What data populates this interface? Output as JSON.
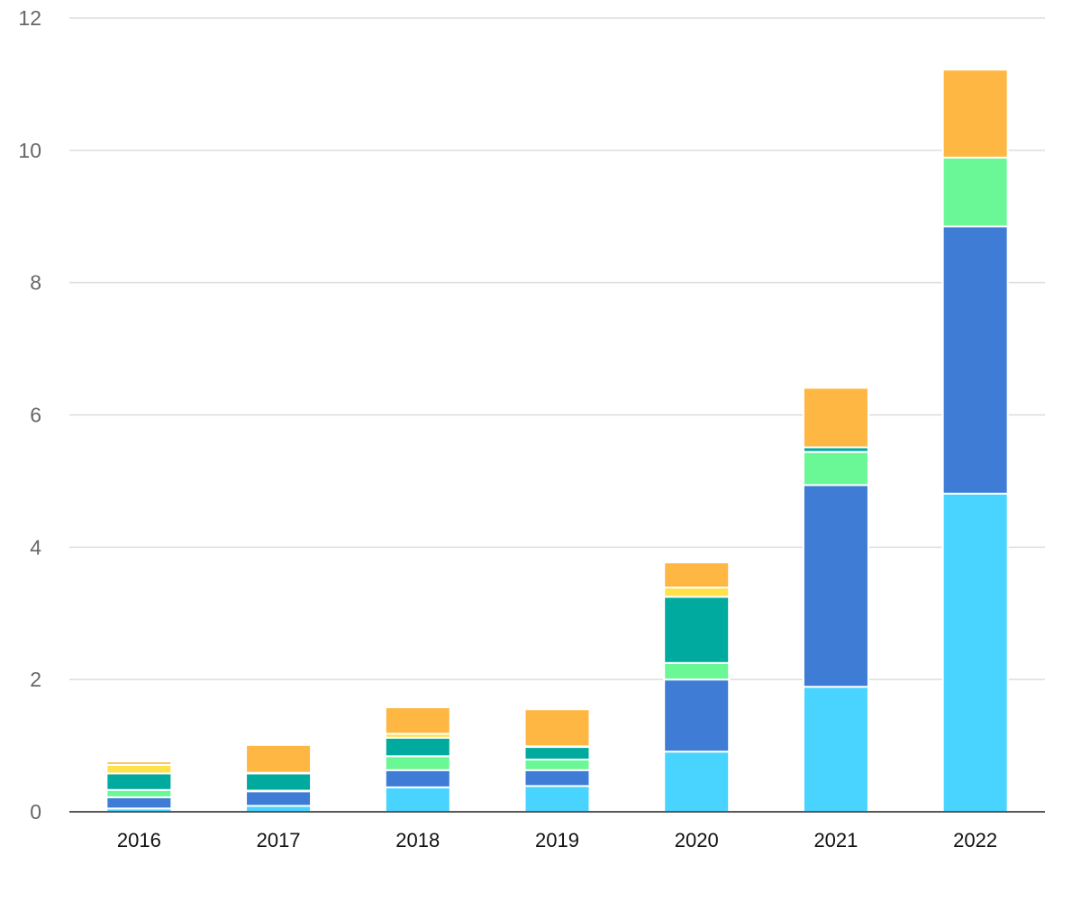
{
  "chart_data": {
    "type": "bar",
    "stacked": true,
    "categories": [
      "2016",
      "2017",
      "2018",
      "2019",
      "2020",
      "2021",
      "2022"
    ],
    "ylim": [
      0,
      12
    ],
    "yticks": [
      0,
      2,
      4,
      6,
      8,
      10,
      12
    ],
    "grid": true,
    "legend": "none",
    "colors": [
      "#48D4FF",
      "#3F7CD6",
      "#6AF897",
      "#00AA9E",
      "#FFE14A",
      "#FFB744"
    ],
    "series": [
      {
        "values": [
          0.05,
          0.09,
          0.37,
          0.39,
          0.91,
          1.89,
          4.81
        ]
      },
      {
        "values": [
          0.17,
          0.22,
          0.26,
          0.24,
          1.09,
          3.05,
          4.04
        ]
      },
      {
        "values": [
          0.11,
          0.01,
          0.21,
          0.16,
          0.25,
          0.5,
          1.04
        ]
      },
      {
        "values": [
          0.25,
          0.26,
          0.28,
          0.19,
          1.0,
          0.07,
          0.0
        ]
      },
      {
        "values": [
          0.13,
          0.01,
          0.06,
          0.01,
          0.14,
          0.0,
          0.0
        ]
      },
      {
        "values": [
          0.05,
          0.42,
          0.4,
          0.56,
          0.38,
          0.9,
          1.33
        ]
      }
    ]
  }
}
